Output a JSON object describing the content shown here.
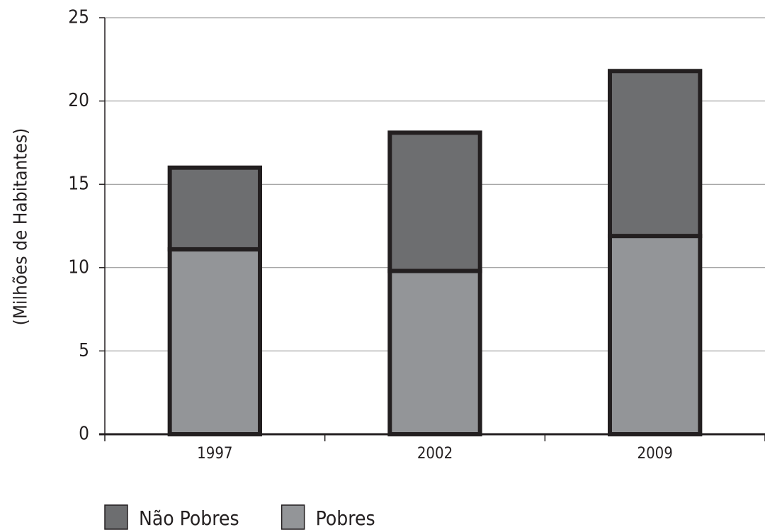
{
  "chart_data": {
    "type": "stacked_bar",
    "y_label": "(Milhões de Habitantes)",
    "categories": [
      "1997",
      "2002",
      "2009"
    ],
    "series": [
      {
        "name": "Pobres",
        "color": "#939598",
        "values": [
          11.1,
          9.8,
          11.9
        ]
      },
      {
        "name": "Não Pobres",
        "color": "#6d6e70",
        "values": [
          4.9,
          8.3,
          9.9
        ]
      }
    ],
    "ylim": [
      0,
      25
    ],
    "yticks": [
      0,
      5,
      10,
      15,
      20,
      25
    ],
    "grid": true
  }
}
